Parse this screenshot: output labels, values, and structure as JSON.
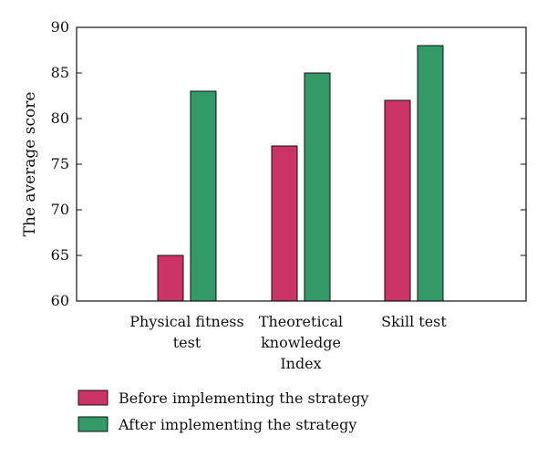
{
  "chart_data": {
    "type": "bar",
    "title": "",
    "xlabel": "",
    "ylabel": "The average score",
    "ylim": [
      60,
      90
    ],
    "yticks": [
      60,
      65,
      70,
      75,
      80,
      85,
      90
    ],
    "grid": false,
    "legend_position": "bottom-left",
    "categories": [
      [
        "Physical fitness",
        "test"
      ],
      [
        "Theoretical",
        "knowledge",
        "Index"
      ],
      [
        "Skill test"
      ]
    ],
    "series": [
      {
        "name": "Before implementing the strategy",
        "color": "#cc3366",
        "values": [
          65,
          77,
          82
        ]
      },
      {
        "name": "After implementing the strategy",
        "color": "#339966",
        "values": [
          83,
          85,
          88
        ]
      }
    ]
  }
}
